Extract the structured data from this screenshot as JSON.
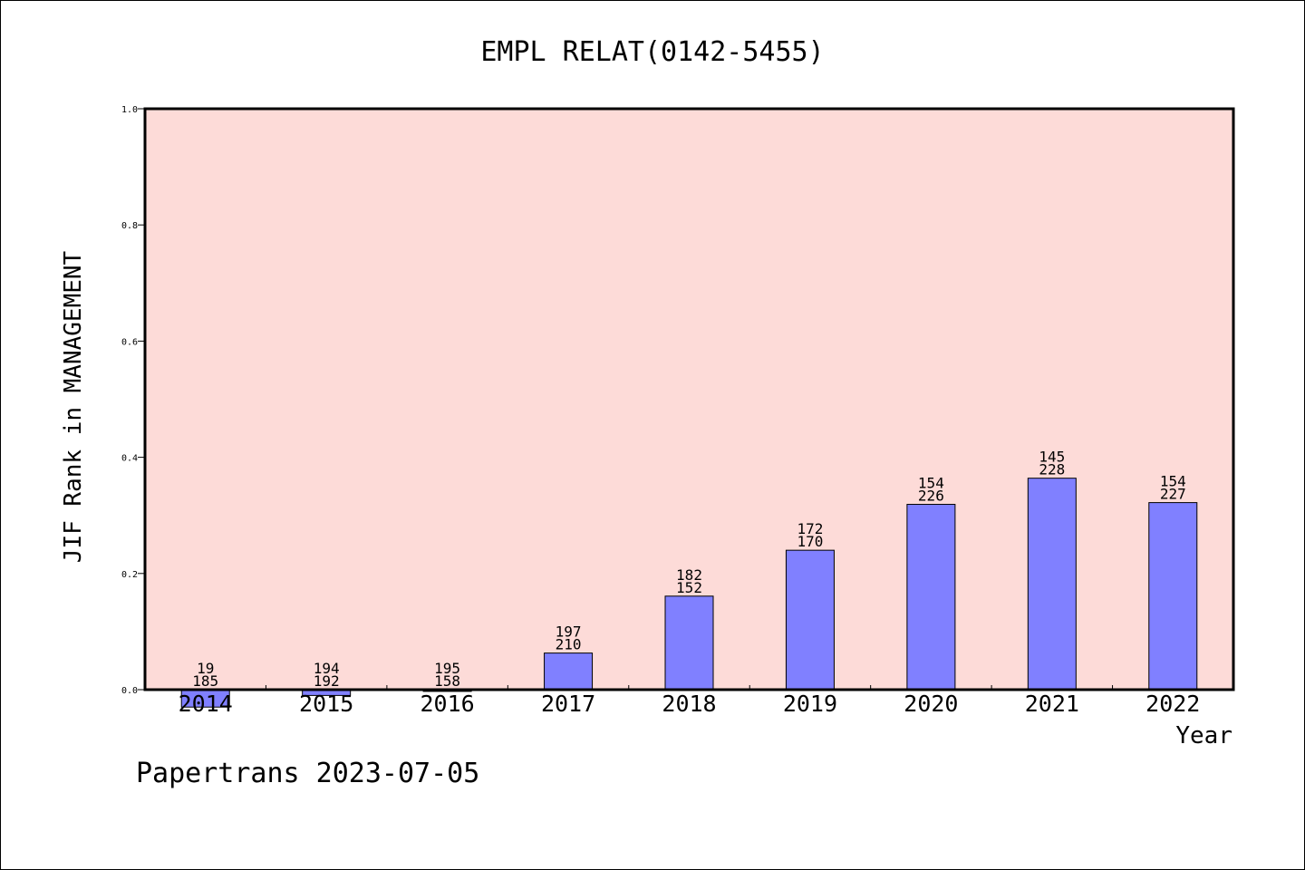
{
  "chart_data": {
    "type": "bar",
    "title": "EMPL RELAT(0142-5455)",
    "xlabel": "Year",
    "ylabel": "JIF Rank in MANAGEMENT",
    "ylim": [
      0,
      1.0
    ],
    "yticks": [
      "0.0",
      "0.2",
      "0.4",
      "0.6",
      "0.8",
      "1.0"
    ],
    "categories": [
      "2014",
      "2015",
      "2016",
      "2017",
      "2018",
      "2019",
      "2020",
      "2021",
      "2022"
    ],
    "values": [
      -0.03,
      -0.01,
      -0.003,
      0.063,
      0.161,
      0.24,
      0.319,
      0.364,
      0.322
    ],
    "ranks": [
      "19",
      "194",
      "195",
      "197",
      "182",
      "172",
      "154",
      "145",
      "154"
    ],
    "totals": [
      "185",
      "192",
      "158",
      "210",
      "152",
      "170",
      "226",
      "228",
      "227"
    ],
    "grid": false,
    "colors": {
      "plot_background": "#fddbd8",
      "bar_fill": "#8080ff",
      "bar_stroke": "#000000"
    }
  },
  "footer": {
    "text": "Papertrans 2023-07-05"
  }
}
